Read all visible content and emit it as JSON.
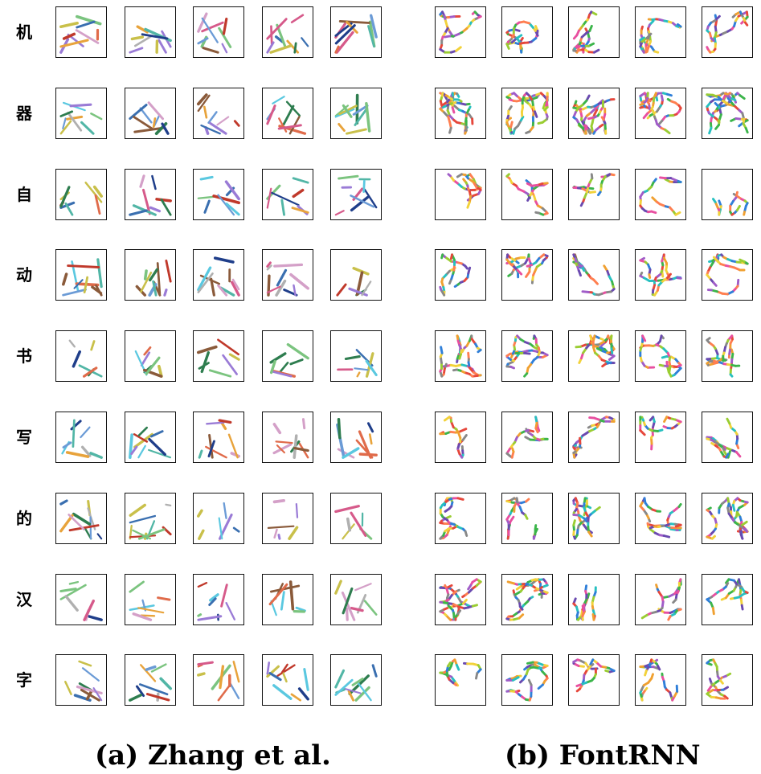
{
  "figure": {
    "characters": [
      "机",
      "器",
      "自",
      "动",
      "书",
      "写",
      "的",
      "汉",
      "字"
    ],
    "samples_per_method": 5,
    "panels": [
      {
        "id": "a",
        "caption": "(a) Zhang et al.",
        "style": "straight-segment strokes"
      },
      {
        "id": "b",
        "caption": "(b) FontRNN",
        "style": "curved multi-colored strokes"
      }
    ]
  }
}
